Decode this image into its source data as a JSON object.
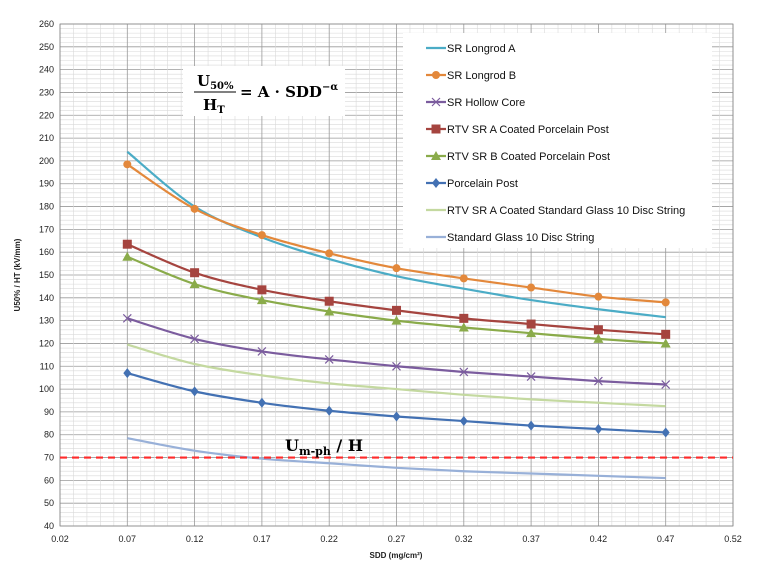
{
  "chart_data": {
    "type": "line",
    "title": "",
    "xlabel": "SDD  (mg/cm²)",
    "ylabel": "U50% / HT  (kV/mm)",
    "xlim": [
      0.02,
      0.52
    ],
    "ylim": [
      40,
      260
    ],
    "x_ticks": [
      "0.02",
      "0.07",
      "0.12",
      "0.17",
      "0.22",
      "0.27",
      "0.32",
      "0.37",
      "0.42",
      "0.47",
      "0.52"
    ],
    "y_ticks": [
      "40",
      "50",
      "60",
      "70",
      "80",
      "90",
      "100",
      "110",
      "120",
      "130",
      "140",
      "150",
      "160",
      "170",
      "180",
      "190",
      "200",
      "210",
      "220",
      "230",
      "240",
      "250",
      "260"
    ],
    "grid": true,
    "legend_position": "top-right",
    "x": [
      0.07,
      0.12,
      0.17,
      0.22,
      0.27,
      0.32,
      0.37,
      0.42,
      0.47
    ],
    "series": [
      {
        "name": "SR Longrod A",
        "color": "#4bacc6",
        "marker": "none",
        "values": [
          204,
          180,
          166.5,
          157,
          149.5,
          144,
          139,
          135,
          131.5
        ]
      },
      {
        "name": "SR Longrod B",
        "color": "#e3883b",
        "marker": "circle",
        "values": [
          198.5,
          179,
          167.5,
          159.5,
          153,
          148.5,
          144.5,
          140.5,
          138
        ]
      },
      {
        "name": "SR Hollow Core",
        "color": "#7b5c9e",
        "marker": "x",
        "values": [
          131,
          122,
          116.5,
          113,
          110,
          107.5,
          105.5,
          103.5,
          102
        ]
      },
      {
        "name": "RTV SR A Coated Porcelain Post",
        "color": "#a5443f",
        "marker": "square",
        "values": [
          163.5,
          151,
          143.5,
          138.5,
          134.5,
          131,
          128.5,
          126,
          124
        ]
      },
      {
        "name": "RTV SR B Coated Porcelain Post",
        "color": "#8aab4a",
        "marker": "triangle",
        "values": [
          158,
          146,
          139,
          134,
          130,
          127,
          124.5,
          122,
          120
        ]
      },
      {
        "name": "Porcelain Post",
        "color": "#4371b3",
        "marker": "diamond",
        "values": [
          107,
          99,
          94,
          90.5,
          88,
          86,
          84,
          82.5,
          81
        ]
      },
      {
        "name": "RTV SR A Coated Standard Glass 10 Disc String",
        "color": "#c4d9a0",
        "marker": "none",
        "values": [
          119.5,
          111,
          106,
          102.5,
          100,
          97.5,
          95.5,
          94,
          92.5
        ]
      },
      {
        "name": "Standard Glass 10 Disc String",
        "color": "#98b0d8",
        "marker": "none",
        "values": [
          78.5,
          73,
          69.5,
          67.5,
          65.5,
          64,
          63,
          62,
          61
        ]
      }
    ],
    "reference_line": {
      "y": 70,
      "color": "#ff2a2a",
      "style": "dashed",
      "label_main": "U",
      "label_sub": "m-ph",
      "label_rest": " / H"
    },
    "formula": {
      "num_main": "U",
      "num_sub": "50%",
      "den_main": "H",
      "den_sub": "T",
      "rhs": "= A · SDD",
      "rhs_sup": "−α"
    }
  }
}
